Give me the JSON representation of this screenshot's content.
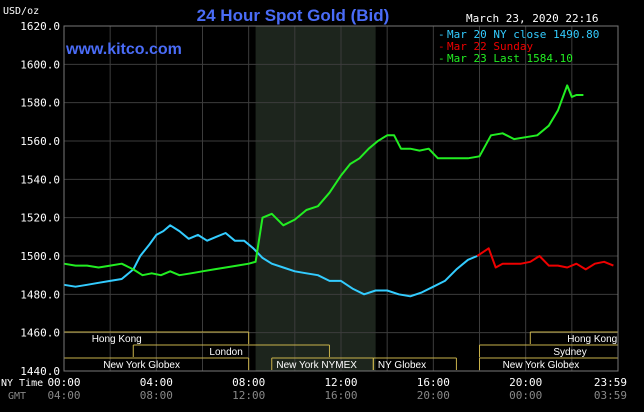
{
  "header": {
    "title": "24 Hour Spot Gold (Bid)",
    "website": "www.kitco.com",
    "timestamp": "March 23, 2020 22:16",
    "unit_label": "USD/oz"
  },
  "legend": [
    {
      "text": "Mar 20 NY close 1490.80",
      "color": "#33ccff"
    },
    {
      "text": "Mar 22 Sunday",
      "color": "#ee0000"
    },
    {
      "text": "Mar 23 Last 1584.10",
      "color": "#22ee22"
    }
  ],
  "colors": {
    "background": "#000000",
    "grid": "#3c3c3c",
    "plot_border": "#777777",
    "shade": "#1d251d",
    "title": "#4a6cf7",
    "website": "#4a6cf7",
    "session_border": "#c9b24a",
    "axis_text": "#ffffff",
    "gmt_text": "#888888"
  },
  "sessions": [
    {
      "label": "Hong Kong",
      "start": 0,
      "end": 8.0,
      "row": 0,
      "label_at": 1.2
    },
    {
      "label": "Hong Kong",
      "start": 20.2,
      "end": 24,
      "row": 0,
      "label_at": 21.8
    },
    {
      "label": "London",
      "start": 3.0,
      "end": 11.5,
      "row": 1,
      "label_at": 6.3
    },
    {
      "label": "Sydney",
      "start": 18.0,
      "end": 24,
      "row": 1,
      "label_at": 21.2
    },
    {
      "label": "New York Globex",
      "start": 0,
      "end": 8.0,
      "row": 2,
      "label_at": 1.7
    },
    {
      "label": "New York NYMEX",
      "start": 9.0,
      "end": 13.4,
      "row": 2,
      "label_at": 9.2
    },
    {
      "label": "NY Globex",
      "start": 13.4,
      "end": 17.0,
      "row": 2,
      "label_at": 13.6
    },
    {
      "label": "New York Globex",
      "start": 18.0,
      "end": 24,
      "row": 2,
      "label_at": 19.0
    }
  ],
  "x_axis": {
    "row_labels": [
      "NY Time",
      "GMT"
    ],
    "ny_ticks": [
      "00:00",
      "04:00",
      "08:00",
      "12:00",
      "16:00",
      "20:00",
      "23:59"
    ],
    "gmt_ticks": [
      "04:00",
      "08:00",
      "12:00",
      "16:00",
      "20:00",
      "00:00",
      "03:59"
    ]
  },
  "chart_data": {
    "type": "line",
    "title": "24 Hour Spot Gold (Bid)",
    "ylabel": "USD/oz",
    "xlabel": "NY Time",
    "xlim": [
      0,
      24
    ],
    "ylim": [
      1440,
      1620
    ],
    "y_ticks": [
      1440,
      1460,
      1480,
      1500,
      1520,
      1540,
      1560,
      1580,
      1600,
      1620
    ],
    "x_ticks": [
      "00:00",
      "04:00",
      "08:00",
      "12:00",
      "16:00",
      "20:00",
      "23:59"
    ],
    "shaded_range": [
      8.3,
      13.5
    ],
    "grid": true,
    "legend_position": "top-right",
    "series": [
      {
        "name": "Mar 20 NY close 1490.80",
        "color": "#33ccff",
        "x": [
          0,
          0.5,
          1,
          1.5,
          2,
          2.5,
          3,
          3.3,
          3.7,
          4.0,
          4.3,
          4.6,
          5.0,
          5.4,
          5.8,
          6.2,
          6.6,
          7.0,
          7.4,
          7.8,
          8.2,
          8.6,
          9.0,
          9.5,
          10.0,
          10.5,
          11.0,
          11.5,
          12.0,
          12.5,
          13.0,
          13.5,
          14.0,
          14.5,
          15.0,
          15.5,
          16.0,
          16.5,
          17.0,
          17.5,
          17.9
        ],
        "y": [
          1485,
          1484,
          1485,
          1486,
          1487,
          1488,
          1493,
          1500,
          1506,
          1511,
          1513,
          1516,
          1513,
          1509,
          1511,
          1508,
          1510,
          1512,
          1508,
          1508,
          1504,
          1499,
          1496,
          1494,
          1492,
          1491,
          1490,
          1487,
          1487,
          1483,
          1480,
          1482,
          1482,
          1480,
          1479,
          1481,
          1484,
          1487,
          1493,
          1498,
          1500
        ]
      },
      {
        "name": "Mar 22 Sunday",
        "color": "#ee0000",
        "x": [
          17.9,
          18.4,
          18.7,
          19.0,
          19.4,
          19.8,
          20.2,
          20.6,
          21.0,
          21.4,
          21.8,
          22.2,
          22.6,
          23.0,
          23.4,
          23.8
        ],
        "y": [
          1500,
          1504,
          1494,
          1496,
          1496,
          1496,
          1497,
          1500,
          1495,
          1495,
          1494,
          1496,
          1493,
          1496,
          1497,
          1495
        ]
      },
      {
        "name": "Mar 23 Last 1584.10",
        "color": "#22ee22",
        "x": [
          0,
          0.5,
          1,
          1.5,
          2,
          2.5,
          3.0,
          3.4,
          3.8,
          4.2,
          4.6,
          5.0,
          5.5,
          6.0,
          6.5,
          7.0,
          7.5,
          8.0,
          8.3,
          8.6,
          9.0,
          9.5,
          10.0,
          10.5,
          11.0,
          11.5,
          12.0,
          12.4,
          12.8,
          13.2,
          13.6,
          14.0,
          14.3,
          14.6,
          15.0,
          15.4,
          15.8,
          16.2,
          16.6,
          17.0,
          17.5,
          18.0,
          18.5,
          19.0,
          19.5,
          20.0,
          20.5,
          21.0,
          21.4,
          21.8,
          22.0,
          22.2,
          22.5
        ],
        "y": [
          1496,
          1495,
          1495,
          1494,
          1495,
          1496,
          1493,
          1490,
          1491,
          1490,
          1492,
          1490,
          1491,
          1492,
          1493,
          1494,
          1495,
          1496,
          1497,
          1520,
          1522,
          1516,
          1519,
          1524,
          1526,
          1533,
          1542,
          1548,
          1551,
          1556,
          1560,
          1563,
          1563,
          1556,
          1556,
          1555,
          1556,
          1551,
          1551,
          1551,
          1551,
          1552,
          1563,
          1564,
          1561,
          1562,
          1563,
          1568,
          1576,
          1589,
          1583,
          1584,
          1584
        ]
      }
    ]
  }
}
